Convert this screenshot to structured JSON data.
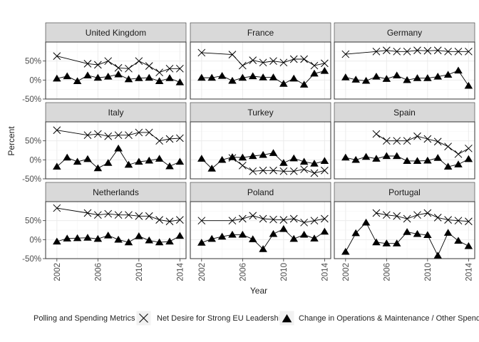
{
  "chart_data": {
    "type": "line",
    "ylabel": "Percent",
    "xlabel": "Year",
    "x_ticks": [
      2002,
      2006,
      2010,
      2014
    ],
    "y_ticks": [
      -50,
      0,
      50
    ],
    "y_tick_labels": [
      "-50%",
      "0%",
      "50%"
    ],
    "xlim": [
      2000.9,
      2014.6
    ],
    "ylim": [
      -50,
      100
    ],
    "legend": {
      "title": "Polling and Spending Metrics",
      "placement": "bottom",
      "entries": [
        "Net Desire for Strong EU Leadership",
        "Change in Operations & Maintenance / Other Spending"
      ]
    },
    "colors": {
      "strip_bg": "#d9d9d9",
      "panel_border": "#333333",
      "grid_major": "#ebebeb",
      "grid_minor": "#f5f5f5",
      "line": "#000000"
    },
    "panels": [
      {
        "title": "United Kingdom",
        "series": [
          {
            "name": "Net Desire for Strong EU Leadership",
            "x": [
              2002,
              2005,
              2006,
              2007,
              2008,
              2009,
              2010,
              2011,
              2012,
              2013,
              2014
            ],
            "y": [
              63,
              43,
              40,
              50,
              32,
              30,
              50,
              37,
              20,
              30,
              30
            ]
          },
          {
            "name": "Change in Operations & Maintenance / Other Spending",
            "x": [
              2002,
              2003,
              2004,
              2005,
              2006,
              2007,
              2008,
              2009,
              2010,
              2011,
              2012,
              2013,
              2014
            ],
            "y": [
              4,
              10,
              -3,
              12,
              6,
              9,
              15,
              2,
              5,
              6,
              -3,
              5,
              -6
            ]
          }
        ]
      },
      {
        "title": "France",
        "series": [
          {
            "name": "Net Desire for Strong EU Leadership",
            "x": [
              2002,
              2005,
              2006,
              2007,
              2008,
              2009,
              2010,
              2011,
              2012,
              2013,
              2014
            ],
            "y": [
              72,
              67,
              38,
              52,
              46,
              50,
              46,
              55,
              55,
              38,
              44
            ]
          },
          {
            "name": "Change in Operations & Maintenance / Other Spending",
            "x": [
              2002,
              2003,
              2004,
              2005,
              2006,
              2007,
              2008,
              2009,
              2010,
              2011,
              2012,
              2013,
              2014
            ],
            "y": [
              6,
              6,
              11,
              -2,
              6,
              10,
              7,
              7,
              -10,
              4,
              -12,
              17,
              24
            ]
          }
        ]
      },
      {
        "title": "Germany",
        "series": [
          {
            "name": "Net Desire for Strong EU Leadership",
            "x": [
              2002,
              2005,
              2006,
              2007,
              2008,
              2009,
              2010,
              2011,
              2012,
              2013,
              2014
            ],
            "y": [
              68,
              75,
              78,
              75,
              75,
              78,
              77,
              78,
              75,
              75,
              75
            ]
          },
          {
            "name": "Change in Operations & Maintenance / Other Spending",
            "x": [
              2002,
              2003,
              2004,
              2005,
              2006,
              2007,
              2008,
              2009,
              2010,
              2011,
              2012,
              2013,
              2014
            ],
            "y": [
              7,
              1,
              -2,
              9,
              3,
              12,
              0,
              5,
              5,
              9,
              14,
              25,
              -15
            ]
          }
        ]
      },
      {
        "title": "Italy",
        "series": [
          {
            "name": "Net Desire for Strong EU Leadership",
            "x": [
              2002,
              2005,
              2006,
              2007,
              2008,
              2009,
              2010,
              2011,
              2012,
              2013,
              2014
            ],
            "y": [
              78,
              65,
              68,
              62,
              65,
              65,
              72,
              72,
              50,
              55,
              57
            ]
          },
          {
            "name": "Change in Operations & Maintenance / Other Spending",
            "x": [
              2002,
              2003,
              2004,
              2005,
              2006,
              2007,
              2008,
              2009,
              2010,
              2011,
              2012,
              2013,
              2014
            ],
            "y": [
              -18,
              6,
              -5,
              2,
              -22,
              -8,
              30,
              -13,
              -5,
              -2,
              3,
              -17,
              -5
            ]
          }
        ]
      },
      {
        "title": "Turkey",
        "series": [
          {
            "name": "Net Desire for Strong EU Leadership",
            "x": [
              2005,
              2006,
              2007,
              2008,
              2009,
              2010,
              2011,
              2012,
              2013,
              2014
            ],
            "y": [
              5,
              -15,
              -30,
              -28,
              -28,
              -30,
              -30,
              -25,
              -35,
              -28
            ]
          },
          {
            "name": "Change in Operations & Maintenance / Other Spending",
            "x": [
              2002,
              2003,
              2004,
              2005,
              2006,
              2007,
              2008,
              2009,
              2010,
              2011,
              2012,
              2013,
              2014
            ],
            "y": [
              3,
              -23,
              0,
              7,
              6,
              10,
              13,
              18,
              -8,
              4,
              -5,
              -10,
              -3
            ]
          }
        ]
      },
      {
        "title": "Spain",
        "series": [
          {
            "name": "Net Desire for Strong EU Leadership",
            "x": [
              2005,
              2006,
              2007,
              2008,
              2009,
              2010,
              2011,
              2012,
              2013,
              2014
            ],
            "y": [
              68,
              50,
              50,
              50,
              62,
              55,
              48,
              35,
              15,
              30
            ]
          },
          {
            "name": "Change in Operations & Maintenance / Other Spending",
            "x": [
              2002,
              2003,
              2004,
              2005,
              2006,
              2007,
              2008,
              2009,
              2010,
              2011,
              2012,
              2013,
              2014
            ],
            "y": [
              6,
              0,
              8,
              3,
              10,
              10,
              -3,
              -3,
              -2,
              5,
              -18,
              -12,
              2
            ]
          }
        ]
      },
      {
        "title": "Netherlands",
        "series": [
          {
            "name": "Net Desire for Strong EU Leadership",
            "x": [
              2002,
              2005,
              2006,
              2007,
              2008,
              2009,
              2010,
              2011,
              2012,
              2013,
              2014
            ],
            "y": [
              83,
              70,
              65,
              68,
              65,
              65,
              62,
              62,
              52,
              48,
              52
            ]
          },
          {
            "name": "Change in Operations & Maintenance / Other Spending",
            "x": [
              2002,
              2003,
              2004,
              2005,
              2006,
              2007,
              2008,
              2009,
              2010,
              2011,
              2012,
              2013,
              2014
            ],
            "y": [
              -5,
              3,
              4,
              5,
              2,
              11,
              0,
              -7,
              9,
              -2,
              -7,
              -5,
              10
            ]
          }
        ]
      },
      {
        "title": "Poland",
        "series": [
          {
            "name": "Net Desire for Strong EU Leadership",
            "x": [
              2002,
              2005,
              2006,
              2007,
              2008,
              2009,
              2010,
              2011,
              2012,
              2013,
              2014
            ],
            "y": [
              50,
              50,
              55,
              63,
              55,
              53,
              52,
              55,
              45,
              50,
              55
            ]
          },
          {
            "name": "Change in Operations & Maintenance / Other Spending",
            "x": [
              2002,
              2003,
              2004,
              2005,
              2006,
              2007,
              2008,
              2009,
              2010,
              2011,
              2012,
              2013,
              2014
            ],
            "y": [
              -8,
              2,
              8,
              13,
              13,
              1,
              -25,
              15,
              28,
              2,
              13,
              3,
              21
            ]
          }
        ]
      },
      {
        "title": "Portugal",
        "series": [
          {
            "name": "Net Desire for Strong EU Leadership",
            "x": [
              2005,
              2006,
              2007,
              2008,
              2009,
              2010,
              2011,
              2012,
              2013,
              2014
            ],
            "y": [
              70,
              65,
              62,
              55,
              65,
              70,
              58,
              52,
              50,
              48
            ]
          },
          {
            "name": "Change in Operations & Maintenance / Other Spending",
            "x": [
              2002,
              2003,
              2004,
              2005,
              2006,
              2007,
              2008,
              2009,
              2010,
              2011,
              2012,
              2013,
              2014
            ],
            "y": [
              -32,
              17,
              45,
              -7,
              -10,
              -10,
              20,
              15,
              12,
              -42,
              18,
              -3,
              -17
            ]
          }
        ]
      }
    ]
  }
}
